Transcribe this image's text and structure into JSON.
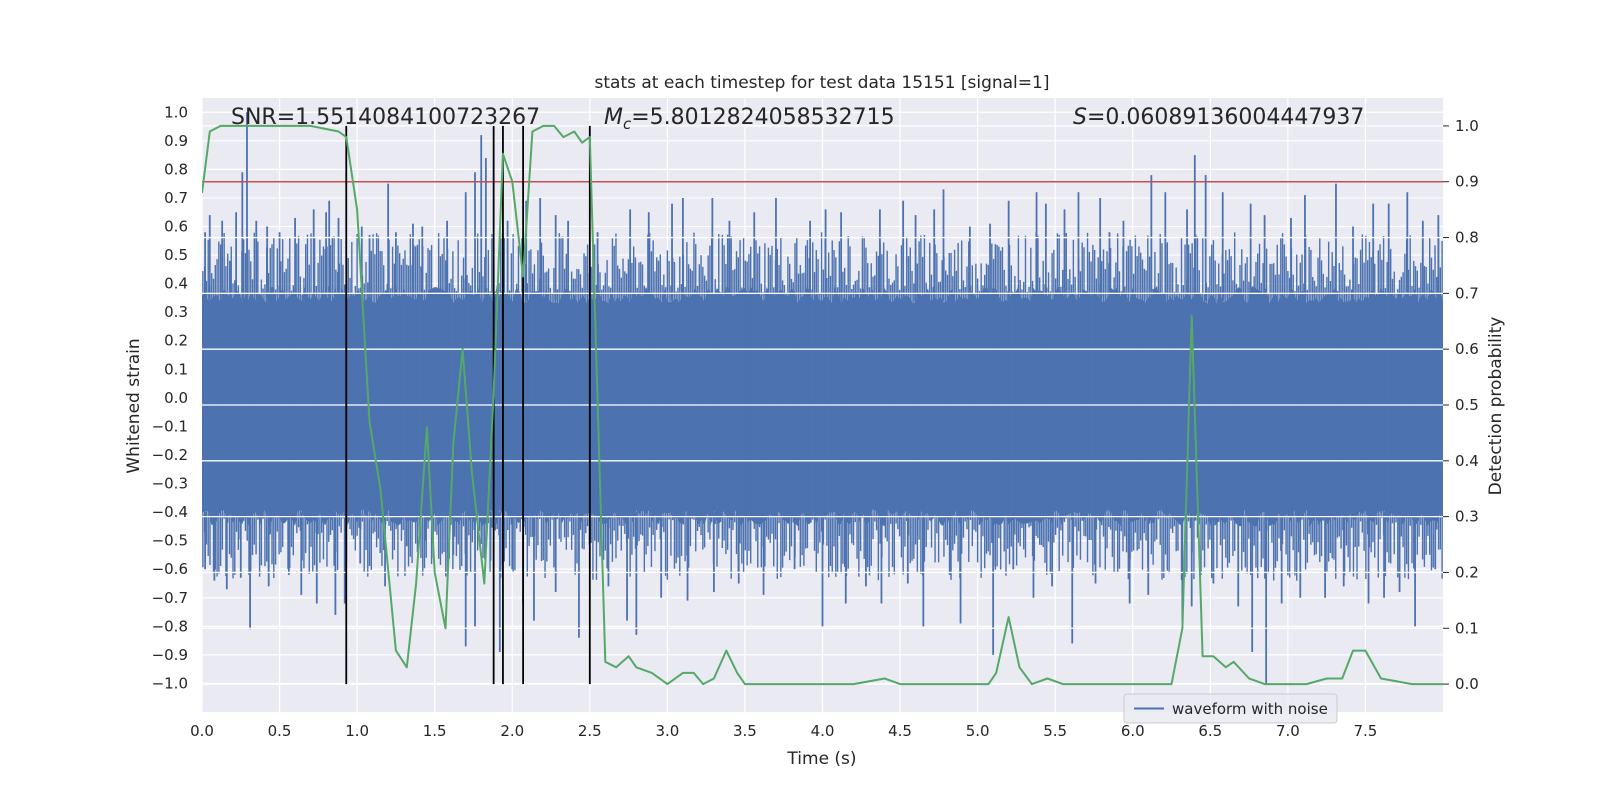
{
  "chart_data": {
    "type": "line",
    "title": "stats at each timestep for test data 15151 [signal=1]",
    "xlabel": "Time (s)",
    "ylabel": "Whitened strain",
    "y2label": "Detection probability",
    "xlim": [
      0.0,
      8.0
    ],
    "ylim": [
      -1.1,
      1.05
    ],
    "y2lim": [
      -0.05,
      1.05
    ],
    "xticks": [
      0.0,
      0.5,
      1.0,
      1.5,
      2.0,
      2.5,
      3.0,
      3.5,
      4.0,
      4.5,
      5.0,
      5.5,
      6.0,
      6.5,
      7.0,
      7.5
    ],
    "xtick_labels": [
      "0.0",
      "0.5",
      "1.0",
      "1.5",
      "2.0",
      "2.5",
      "3.0",
      "3.5",
      "4.0",
      "4.5",
      "5.0",
      "5.5",
      "6.0",
      "6.5",
      "7.0",
      "7.5"
    ],
    "yticks": [
      1.0,
      0.9,
      0.8,
      0.7,
      0.6,
      0.5,
      0.4,
      0.3,
      0.2,
      0.1,
      0.0,
      -0.1,
      -0.2,
      -0.3,
      -0.4,
      -0.5,
      -0.6,
      -0.7,
      -0.8,
      -0.9,
      -1.0
    ],
    "ytick_labels": [
      "1.0",
      "0.9",
      "0.8",
      "0.7",
      "0.6",
      "0.5",
      "0.4",
      "0.3",
      "0.2",
      "0.1",
      "0.0",
      "−0.1",
      "−0.2",
      "−0.3",
      "−0.4",
      "−0.5",
      "−0.6",
      "−0.7",
      "−0.8",
      "−0.9",
      "−1.0"
    ],
    "y2ticks": [
      1.0,
      0.9,
      0.8,
      0.7,
      0.6,
      0.5,
      0.4,
      0.3,
      0.2,
      0.1,
      0.0
    ],
    "y2tick_labels": [
      "1.0",
      "0.9",
      "0.8",
      "0.7",
      "0.6",
      "0.5",
      "0.4",
      "0.3",
      "0.2",
      "0.1",
      "0.0"
    ],
    "annotations": {
      "snr": "SNR=1.5514084100723267",
      "mc_symbol": "M",
      "mc_sub": "c",
      "mc_value": "=5.8012824058532715",
      "s_symbol": "S",
      "s_value": "=0.06089136004447937"
    },
    "threshold": 0.9,
    "markers": [
      0.93,
      1.88,
      1.94,
      2.07,
      2.5
    ],
    "legend": {
      "label": "waveform with noise",
      "position": "lower-right"
    },
    "waveform": {
      "name": "waveform with noise",
      "duration": 8.0,
      "band_min": -0.42,
      "band_max": 0.36,
      "peaks_max": [
        [
          0.02,
          0.58
        ],
        [
          0.05,
          0.64
        ],
        [
          0.13,
          0.62
        ],
        [
          0.18,
          0.48
        ],
        [
          0.22,
          0.65
        ],
        [
          0.26,
          0.79
        ],
        [
          0.29,
          1.0
        ],
        [
          0.35,
          0.62
        ],
        [
          0.42,
          0.6
        ],
        [
          0.5,
          0.58
        ],
        [
          0.6,
          0.63
        ],
        [
          0.72,
          0.66
        ],
        [
          0.8,
          0.65
        ],
        [
          0.82,
          0.69
        ],
        [
          0.88,
          0.63
        ],
        [
          1.03,
          0.6
        ],
        [
          1.08,
          0.57
        ],
        [
          1.2,
          0.75
        ],
        [
          1.25,
          0.58
        ],
        [
          1.36,
          0.61
        ],
        [
          1.42,
          0.6
        ],
        [
          1.58,
          0.62
        ],
        [
          1.7,
          0.72
        ],
        [
          1.76,
          0.79
        ],
        [
          1.8,
          0.92
        ],
        [
          1.83,
          0.84
        ],
        [
          1.97,
          0.62
        ],
        [
          2.09,
          0.69
        ],
        [
          2.18,
          0.7
        ],
        [
          2.28,
          0.64
        ],
        [
          2.36,
          0.62
        ],
        [
          2.55,
          0.58
        ],
        [
          2.76,
          0.66
        ],
        [
          2.88,
          0.65
        ],
        [
          3.03,
          0.68
        ],
        [
          3.1,
          0.7
        ],
        [
          3.29,
          0.7
        ],
        [
          3.4,
          0.62
        ],
        [
          3.56,
          0.65
        ],
        [
          3.7,
          0.7
        ],
        [
          3.92,
          0.62
        ],
        [
          4.02,
          0.66
        ],
        [
          4.12,
          0.65
        ],
        [
          4.37,
          0.66
        ],
        [
          4.52,
          0.69
        ],
        [
          4.6,
          0.64
        ],
        [
          4.72,
          0.66
        ],
        [
          4.78,
          0.73
        ],
        [
          4.95,
          0.6
        ],
        [
          5.08,
          0.61
        ],
        [
          5.2,
          0.69
        ],
        [
          5.38,
          0.72
        ],
        [
          5.44,
          0.68
        ],
        [
          5.56,
          0.66
        ],
        [
          5.65,
          0.72
        ],
        [
          5.79,
          0.7
        ],
        [
          5.85,
          0.58
        ],
        [
          5.94,
          0.62
        ],
        [
          6.12,
          0.78
        ],
        [
          6.21,
          0.72
        ],
        [
          6.35,
          0.66
        ],
        [
          6.4,
          0.85
        ],
        [
          6.47,
          0.78
        ],
        [
          6.58,
          0.72
        ],
        [
          6.76,
          0.68
        ],
        [
          6.85,
          0.64
        ],
        [
          7.02,
          0.63
        ],
        [
          7.11,
          0.71
        ],
        [
          7.31,
          0.75
        ],
        [
          7.42,
          0.6
        ],
        [
          7.55,
          0.68
        ],
        [
          7.65,
          0.68
        ],
        [
          7.77,
          0.72
        ],
        [
          7.87,
          0.62
        ],
        [
          7.97,
          0.64
        ]
      ],
      "peaks_min": [
        [
          0.02,
          -0.6
        ],
        [
          0.08,
          -0.64
        ],
        [
          0.16,
          -0.67
        ],
        [
          0.25,
          -0.63
        ],
        [
          0.31,
          -0.81
        ],
        [
          0.43,
          -0.66
        ],
        [
          0.56,
          -0.62
        ],
        [
          0.64,
          -0.69
        ],
        [
          0.74,
          -0.72
        ],
        [
          0.86,
          -0.76
        ],
        [
          0.92,
          -0.72
        ],
        [
          1.02,
          -0.58
        ],
        [
          1.18,
          -0.66
        ],
        [
          1.32,
          -0.52
        ],
        [
          1.44,
          -0.5
        ],
        [
          1.62,
          -0.55
        ],
        [
          1.7,
          -0.87
        ],
        [
          1.76,
          -0.8
        ],
        [
          1.86,
          -0.57
        ],
        [
          1.92,
          -0.89
        ],
        [
          2.0,
          -0.6
        ],
        [
          2.07,
          -0.72
        ],
        [
          2.14,
          -0.78
        ],
        [
          2.28,
          -0.68
        ],
        [
          2.43,
          -0.84
        ],
        [
          2.62,
          -0.66
        ],
        [
          2.74,
          -0.78
        ],
        [
          2.8,
          -0.83
        ],
        [
          2.96,
          -0.7
        ],
        [
          3.13,
          -0.71
        ],
        [
          3.3,
          -0.68
        ],
        [
          3.46,
          -0.65
        ],
        [
          3.62,
          -0.69
        ],
        [
          3.82,
          -0.6
        ],
        [
          4.0,
          -0.8
        ],
        [
          4.15,
          -0.72
        ],
        [
          4.28,
          -0.66
        ],
        [
          4.38,
          -0.72
        ],
        [
          4.55,
          -0.65
        ],
        [
          4.65,
          -0.8
        ],
        [
          4.82,
          -0.62
        ],
        [
          4.89,
          -0.79
        ],
        [
          5.1,
          -0.9
        ],
        [
          5.23,
          -0.6
        ],
        [
          5.36,
          -0.7
        ],
        [
          5.48,
          -0.66
        ],
        [
          5.61,
          -0.86
        ],
        [
          5.76,
          -0.65
        ],
        [
          5.98,
          -0.72
        ],
        [
          6.1,
          -0.69
        ],
        [
          6.32,
          -0.78
        ],
        [
          6.38,
          -0.73
        ],
        [
          6.52,
          -0.65
        ],
        [
          6.68,
          -0.73
        ],
        [
          6.77,
          -0.89
        ],
        [
          6.86,
          -1.0
        ],
        [
          6.96,
          -0.72
        ],
        [
          7.08,
          -0.7
        ],
        [
          7.24,
          -0.7
        ],
        [
          7.36,
          -0.66
        ],
        [
          7.52,
          -0.72
        ],
        [
          7.62,
          -0.7
        ],
        [
          7.72,
          -0.68
        ],
        [
          7.82,
          -0.8
        ],
        [
          7.95,
          -0.6
        ]
      ]
    },
    "probability": {
      "name": "Detection probability",
      "x": [
        0.0,
        0.05,
        0.12,
        0.2,
        0.3,
        0.5,
        0.7,
        0.88,
        0.93,
        1.0,
        1.08,
        1.15,
        1.25,
        1.32,
        1.38,
        1.45,
        1.5,
        1.57,
        1.62,
        1.68,
        1.74,
        1.82,
        1.88,
        1.94,
        2.0,
        2.07,
        2.13,
        2.2,
        2.27,
        2.33,
        2.4,
        2.45,
        2.5,
        2.6,
        2.67,
        2.75,
        2.8,
        2.9,
        3.0,
        3.1,
        3.17,
        3.23,
        3.3,
        3.38,
        3.45,
        3.5,
        3.6,
        3.8,
        4.0,
        4.2,
        4.4,
        4.5,
        4.6,
        4.8,
        5.0,
        5.07,
        5.12,
        5.2,
        5.27,
        5.35,
        5.45,
        5.55,
        5.7,
        6.0,
        6.15,
        6.25,
        6.32,
        6.38,
        6.45,
        6.52,
        6.6,
        6.65,
        6.75,
        6.85,
        7.0,
        7.12,
        7.25,
        7.35,
        7.42,
        7.5,
        7.6,
        7.8,
        8.0
      ],
      "values": [
        0.88,
        0.99,
        1.0,
        1.0,
        1.0,
        1.0,
        1.0,
        0.99,
        0.98,
        0.85,
        0.47,
        0.35,
        0.06,
        0.03,
        0.18,
        0.46,
        0.2,
        0.1,
        0.43,
        0.6,
        0.38,
        0.18,
        0.52,
        0.95,
        0.9,
        0.73,
        0.99,
        1.0,
        1.0,
        0.98,
        0.99,
        0.97,
        0.98,
        0.04,
        0.03,
        0.05,
        0.03,
        0.02,
        0.0,
        0.02,
        0.02,
        0.0,
        0.01,
        0.06,
        0.02,
        0.0,
        0.0,
        0.0,
        0.0,
        0.0,
        0.01,
        0.0,
        0.0,
        0.0,
        0.0,
        0.0,
        0.02,
        0.12,
        0.03,
        0.0,
        0.01,
        0.0,
        0.0,
        0.0,
        0.0,
        0.0,
        0.1,
        0.66,
        0.05,
        0.05,
        0.03,
        0.04,
        0.01,
        0.0,
        0.0,
        0.0,
        0.01,
        0.01,
        0.06,
        0.06,
        0.01,
        0.0,
        0.0
      ]
    },
    "colors": {
      "background": "#eaeaf2",
      "grid": "#ffffff",
      "waveform": "#4c72b0",
      "probability": "#55a868",
      "threshold": "#c44e52",
      "markers": "#000000"
    }
  }
}
